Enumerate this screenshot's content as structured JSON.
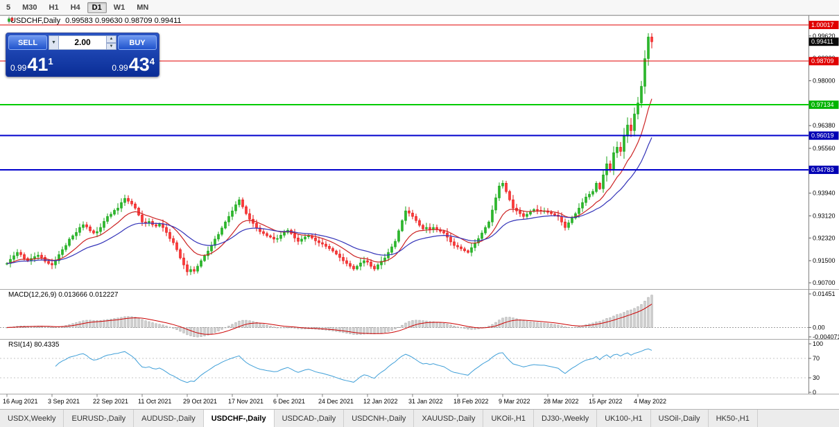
{
  "toolbar": {
    "timeframes": [
      {
        "label": "5",
        "active": false
      },
      {
        "label": "M30",
        "active": false
      },
      {
        "label": "H1",
        "active": false
      },
      {
        "label": "H4",
        "active": false
      },
      {
        "label": "D1",
        "active": true
      },
      {
        "label": "W1",
        "active": false
      },
      {
        "label": "MN",
        "active": false
      }
    ]
  },
  "chart": {
    "title": "USDCHF,Daily",
    "ohlc": "0.99583 0.99630 0.98709 0.99411"
  },
  "trade_panel": {
    "sell_label": "SELL",
    "buy_label": "BUY",
    "volume": "2.00",
    "bid": {
      "prefix": "0.99",
      "big": "41",
      "sup": "1"
    },
    "ask": {
      "prefix": "0.99",
      "big": "43",
      "sup": "4"
    }
  },
  "price_axis": {
    "labels": [
      {
        "text": "0.99620",
        "price": 0.9962
      },
      {
        "text": "0.98820",
        "price": 0.9882
      },
      {
        "text": "0.98000",
        "price": 0.98
      },
      {
        "text": "0.97180",
        "price": 0.9718
      },
      {
        "text": "0.96380",
        "price": 0.9638
      },
      {
        "text": "0.95560",
        "price": 0.9556
      },
      {
        "text": "0.94740",
        "price": 0.9474
      },
      {
        "text": "0.93940",
        "price": 0.9394
      },
      {
        "text": "0.93120",
        "price": 0.9312
      },
      {
        "text": "0.92320",
        "price": 0.9232
      },
      {
        "text": "0.91500",
        "price": 0.915
      },
      {
        "text": "0.90700",
        "price": 0.907
      }
    ],
    "badges": [
      {
        "text": "1.00017",
        "price": 1.00017,
        "color": "#e00000"
      },
      {
        "text": "0.99411",
        "price": 0.99411,
        "color": "#0a0a0a"
      },
      {
        "text": "0.98709",
        "price": 0.98709,
        "color": "#e00000"
      },
      {
        "text": "0.97134",
        "price": 0.97134,
        "color": "#00b400"
      },
      {
        "text": "0.96019",
        "price": 0.96019,
        "color": "#0000b4"
      },
      {
        "text": "0.94783",
        "price": 0.94783,
        "color": "#0000b4"
      }
    ]
  },
  "levels": [
    {
      "price": 1.00017,
      "color": "#e00000",
      "width": 1
    },
    {
      "price": 0.98709,
      "color": "#e00000",
      "width": 1
    },
    {
      "price": 0.97134,
      "color": "#00cc00",
      "width": 2
    },
    {
      "price": 0.96019,
      "color": "#0000cc",
      "width": 2
    },
    {
      "price": 0.94783,
      "color": "#0000cc",
      "width": 2
    }
  ],
  "macd_panel": {
    "title": "MACD(12,26,9) 0.013666 0.012227",
    "axis_labels": [
      {
        "text": "0.01451",
        "value": 0.01451
      },
      {
        "text": "0.00",
        "value": 0.0
      },
      {
        "text": "-0.004071",
        "value": -0.004071
      }
    ]
  },
  "rsi_panel": {
    "title": "RSI(14) 80.4335",
    "axis_labels": [
      {
        "text": "100",
        "value": 100
      },
      {
        "text": "70",
        "value": 70
      },
      {
        "text": "30",
        "value": 30
      },
      {
        "text": "0",
        "value": 0
      }
    ],
    "level_lines": [
      70,
      30
    ]
  },
  "chart_data": {
    "type": "candlestick",
    "symbol": "USDCHF",
    "timeframe": "Daily",
    "last_ohlc": {
      "open": 0.99583,
      "high": 0.9963,
      "low": 0.98709,
      "close": 0.99411
    },
    "ylim": [
      0.9055,
      1.0022
    ],
    "x_labels": [
      "16 Aug 2021",
      "3 Sep 2021",
      "22 Sep 2021",
      "11 Oct 2021",
      "29 Oct 2021",
      "17 Nov 2021",
      "6 Dec 2021",
      "24 Dec 2021",
      "12 Jan 2022",
      "31 Jan 2022",
      "18 Feb 2022",
      "9 Mar 2022",
      "28 Mar 2022",
      "15 Apr 2022",
      "4 May 2022"
    ],
    "x_label_step": 13,
    "closes": [
      0.914,
      0.9155,
      0.9168,
      0.918,
      0.9172,
      0.9158,
      0.915,
      0.9158,
      0.9165,
      0.917,
      0.9162,
      0.9148,
      0.914,
      0.9135,
      0.915,
      0.9172,
      0.919,
      0.9205,
      0.9228,
      0.924,
      0.9252,
      0.927,
      0.928,
      0.9272,
      0.9258,
      0.925,
      0.9255,
      0.927,
      0.9292,
      0.931,
      0.9318,
      0.9332,
      0.934,
      0.936,
      0.9375,
      0.9365,
      0.9355,
      0.934,
      0.9315,
      0.929,
      0.9285,
      0.9292,
      0.928,
      0.9275,
      0.9282,
      0.927,
      0.9252,
      0.923,
      0.9215,
      0.919,
      0.916,
      0.9135,
      0.911,
      0.9118,
      0.9112,
      0.913,
      0.915,
      0.9168,
      0.9185,
      0.9205,
      0.9228,
      0.9245,
      0.9268,
      0.929,
      0.931,
      0.933,
      0.9352,
      0.937,
      0.9345,
      0.932,
      0.93,
      0.9285,
      0.9268,
      0.9255,
      0.9248,
      0.924,
      0.9235,
      0.9228,
      0.923,
      0.9242,
      0.9252,
      0.926,
      0.9248,
      0.9232,
      0.922,
      0.9228,
      0.9236,
      0.924,
      0.9232,
      0.9222,
      0.9215,
      0.921,
      0.9202,
      0.9194,
      0.9185,
      0.9174,
      0.9162,
      0.915,
      0.914,
      0.913,
      0.912,
      0.913,
      0.9142,
      0.915,
      0.9145,
      0.913,
      0.912,
      0.9135,
      0.9148,
      0.916,
      0.918,
      0.92,
      0.922,
      0.9258,
      0.9295,
      0.933,
      0.9322,
      0.931,
      0.9295,
      0.9278,
      0.9265,
      0.927,
      0.9262,
      0.927,
      0.9262,
      0.9256,
      0.925,
      0.9235,
      0.9218,
      0.9205,
      0.92,
      0.9193,
      0.9186,
      0.918,
      0.9197,
      0.9214,
      0.923,
      0.925,
      0.927,
      0.929,
      0.9333,
      0.9377,
      0.942,
      0.943,
      0.94,
      0.937,
      0.934,
      0.933,
      0.932,
      0.931,
      0.9318,
      0.9328,
      0.9335,
      0.9332,
      0.933,
      0.933,
      0.9325,
      0.932,
      0.9315,
      0.931,
      0.929,
      0.927,
      0.9287,
      0.9304,
      0.932,
      0.934,
      0.936,
      0.938,
      0.939,
      0.94,
      0.943,
      0.941,
      0.946,
      0.95,
      0.948,
      0.954,
      0.956,
      0.9545,
      0.96,
      0.964,
      0.962,
      0.968,
      0.972,
      0.978,
      0.988,
      0.9958,
      0.9941
    ],
    "overlays": [
      {
        "name": "ma-fast",
        "period": 12,
        "color": "#cc2222"
      },
      {
        "name": "ma-slow",
        "period": 26,
        "color": "#3333b8"
      }
    ],
    "indicators": [
      {
        "type": "MACD",
        "params": [
          12,
          26,
          9
        ],
        "value": 0.013666,
        "signal_value": 0.012227,
        "axis_range": [
          0.01451,
          -0.004071
        ]
      },
      {
        "type": "RSI",
        "params": [
          14
        ],
        "value": 80.4335,
        "axis_range": [
          100,
          0
        ],
        "levels": [
          70,
          30
        ]
      }
    ]
  },
  "tabs": [
    {
      "label": "USDX,Weekly",
      "active": false
    },
    {
      "label": "EURUSD-,Daily",
      "active": false
    },
    {
      "label": "AUDUSD-,Daily",
      "active": false
    },
    {
      "label": "USDCHF-,Daily",
      "active": true
    },
    {
      "label": "USDCAD-,Daily",
      "active": false
    },
    {
      "label": "USDCNH-,Daily",
      "active": false
    },
    {
      "label": "XAUUSD-,Daily",
      "active": false
    },
    {
      "label": "UKOil-,H1",
      "active": false
    },
    {
      "label": "DJ30-,Weekly",
      "active": false
    },
    {
      "label": "UK100-,H1",
      "active": false
    },
    {
      "label": "USOil-,Daily",
      "active": false
    },
    {
      "label": "HK50-,H1",
      "active": false
    }
  ]
}
